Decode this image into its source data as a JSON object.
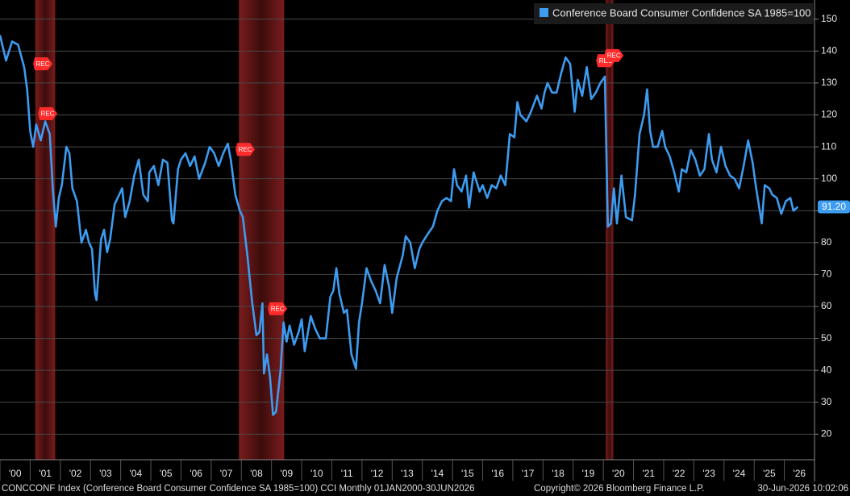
{
  "chart_data": {
    "type": "line",
    "legend_label": "Conference Board Consumer Confidence SA 1985=100",
    "footer_left": "CONCCONF Index (Conference Board Consumer Confidence SA 1985=100) CCI Monthly 01JAN2000-30JUN2026",
    "footer_copyright": "Copyright© 2026 Bloomberg Finance L.P.",
    "footer_timestamp": "30-Jun-2026 10:02:06",
    "last_value_label": "91.20",
    "x": [
      2000.0,
      2000.2,
      2000.4,
      2000.6,
      2000.8,
      2000.9,
      2001.0,
      2001.1,
      2001.2,
      2001.35,
      2001.5,
      2001.65,
      2001.75,
      2001.85,
      2001.95,
      2002.05,
      2002.2,
      2002.3,
      2002.4,
      2002.55,
      2002.7,
      2002.85,
      2002.95,
      2003.05,
      2003.15,
      2003.2,
      2003.35,
      2003.45,
      2003.55,
      2003.65,
      2003.8,
      2003.95,
      2004.05,
      2004.15,
      2004.3,
      2004.45,
      2004.6,
      2004.75,
      2004.9,
      2004.95,
      2005.1,
      2005.25,
      2005.4,
      2005.55,
      2005.7,
      2005.75,
      2005.9,
      2006.0,
      2006.15,
      2006.3,
      2006.45,
      2006.6,
      2006.8,
      2006.95,
      2007.1,
      2007.25,
      2007.4,
      2007.55,
      2007.65,
      2007.8,
      2007.95,
      2008.05,
      2008.2,
      2008.35,
      2008.5,
      2008.6,
      2008.7,
      2008.75,
      2008.85,
      2008.95,
      2009.05,
      2009.15,
      2009.3,
      2009.4,
      2009.5,
      2009.6,
      2009.75,
      2009.9,
      2010.0,
      2010.1,
      2010.3,
      2010.45,
      2010.6,
      2010.8,
      2010.95,
      2011.05,
      2011.15,
      2011.25,
      2011.4,
      2011.5,
      2011.65,
      2011.8,
      2011.9,
      2012.0,
      2012.15,
      2012.3,
      2012.45,
      2012.6,
      2012.75,
      2012.9,
      2013.0,
      2013.15,
      2013.35,
      2013.45,
      2013.6,
      2013.75,
      2013.9,
      2014.0,
      2014.2,
      2014.35,
      2014.5,
      2014.65,
      2014.8,
      2014.95,
      2015.05,
      2015.15,
      2015.3,
      2015.45,
      2015.55,
      2015.7,
      2015.9,
      2016.0,
      2016.15,
      2016.3,
      2016.45,
      2016.6,
      2016.75,
      2016.9,
      2017.05,
      2017.15,
      2017.25,
      2017.45,
      2017.6,
      2017.8,
      2017.95,
      2018.05,
      2018.15,
      2018.3,
      2018.45,
      2018.6,
      2018.75,
      2018.9,
      2019.05,
      2019.15,
      2019.3,
      2019.45,
      2019.6,
      2019.75,
      2019.9,
      2020.05,
      2020.15,
      2020.25,
      2020.35,
      2020.45,
      2020.6,
      2020.75,
      2020.95,
      2021.05,
      2021.2,
      2021.35,
      2021.45,
      2021.55,
      2021.65,
      2021.8,
      2021.95,
      2022.05,
      2022.2,
      2022.35,
      2022.5,
      2022.6,
      2022.75,
      2022.9,
      2023.05,
      2023.2,
      2023.35,
      2023.5,
      2023.6,
      2023.75,
      2023.9,
      2024.05,
      2024.2,
      2024.35,
      2024.5,
      2024.65,
      2024.8,
      2024.95,
      2025.05,
      2025.15,
      2025.25,
      2025.35,
      2025.5,
      2025.6,
      2025.75,
      2025.9,
      2026.05,
      2026.2,
      2026.3,
      2026.45
    ],
    "series": [
      {
        "name": "Conference Board Consumer Confidence SA 1985=100",
        "color": "#3d9bf0",
        "values": [
          145,
          137,
          143,
          142,
          135,
          128,
          115,
          110,
          117,
          112,
          118,
          114,
          97,
          85,
          94,
          98,
          110,
          108,
          97,
          93,
          80,
          84,
          80,
          78,
          64,
          62,
          81,
          84,
          77,
          81,
          92,
          95,
          97,
          88,
          93,
          101,
          106,
          95,
          93,
          102,
          104,
          98,
          106,
          105,
          87,
          86,
          103,
          106,
          108,
          104,
          107,
          100,
          105,
          110,
          108,
          104,
          108,
          111,
          106,
          95,
          90,
          88,
          76,
          62,
          51,
          52,
          61,
          39,
          45,
          38,
          26,
          27,
          40,
          55,
          49,
          54,
          48,
          52,
          56,
          46,
          57,
          53,
          50,
          50,
          63,
          65,
          72,
          64,
          58,
          59,
          45,
          40.5,
          55,
          61,
          72,
          68,
          65,
          61,
          73,
          66,
          58,
          69,
          76,
          82,
          80,
          72,
          78,
          80,
          83,
          85,
          90,
          93,
          94,
          93,
          103,
          98,
          96,
          101,
          91,
          102,
          96,
          98,
          94,
          98,
          97,
          101,
          98,
          114,
          113,
          124,
          120,
          118,
          121,
          126,
          122,
          127,
          130,
          127,
          127,
          133,
          138,
          136,
          121,
          131,
          126,
          135,
          125,
          127,
          130,
          132,
          85,
          86,
          97,
          86,
          101,
          88,
          87,
          95,
          114,
          120,
          128,
          115,
          110,
          110,
          115,
          110,
          107,
          102,
          96,
          103,
          102,
          109,
          106,
          101,
          103,
          114,
          106,
          102,
          110,
          104,
          101,
          100,
          97,
          104,
          112,
          105,
          98,
          92,
          86,
          98,
          97,
          95,
          94,
          89,
          93,
          94,
          90,
          91.2
        ]
      }
    ],
    "recessions": [
      [
        2001.17,
        2001.83
      ],
      [
        2007.92,
        2009.42
      ],
      [
        2020.08,
        2020.33
      ]
    ],
    "annotations": [
      {
        "text": "REC",
        "x": 2001.42,
        "y": 136
      },
      {
        "text": "REC",
        "x": 2001.58,
        "y": 120.4
      },
      {
        "text": "REC",
        "x": 2008.13,
        "y": 109.2
      },
      {
        "text": "REC",
        "x": 2009.2,
        "y": 59.3
      },
      {
        "text": "REC",
        "x": 2020.08,
        "y": 137
      },
      {
        "text": "REC",
        "x": 2020.35,
        "y": 138.6
      }
    ],
    "xlim": [
      2000,
      2027
    ],
    "ylim": [
      12,
      156
    ],
    "yticks": [
      20,
      30,
      40,
      50,
      60,
      70,
      80,
      90,
      100,
      110,
      120,
      130,
      140,
      150
    ],
    "xticks": [
      {
        "value": 2000,
        "label": "'00"
      },
      {
        "value": 2001,
        "label": "'01"
      },
      {
        "value": 2002,
        "label": "'02"
      },
      {
        "value": 2003,
        "label": "'03"
      },
      {
        "value": 2004,
        "label": "'04"
      },
      {
        "value": 2005,
        "label": "'05"
      },
      {
        "value": 2006,
        "label": "'06"
      },
      {
        "value": 2007,
        "label": "'07"
      },
      {
        "value": 2008,
        "label": "'08"
      },
      {
        "value": 2009,
        "label": "'09"
      },
      {
        "value": 2010,
        "label": "'10"
      },
      {
        "value": 2011,
        "label": "'11"
      },
      {
        "value": 2012,
        "label": "'12"
      },
      {
        "value": 2013,
        "label": "'13"
      },
      {
        "value": 2014,
        "label": "'14"
      },
      {
        "value": 2015,
        "label": "'15"
      },
      {
        "value": 2016,
        "label": "'16"
      },
      {
        "value": 2017,
        "label": "'17"
      },
      {
        "value": 2018,
        "label": "'18"
      },
      {
        "value": 2019,
        "label": "'19"
      },
      {
        "value": 2020,
        "label": "'20"
      },
      {
        "value": 2021,
        "label": "'21"
      },
      {
        "value": 2022,
        "label": "'22"
      },
      {
        "value": 2023,
        "label": "'23"
      },
      {
        "value": 2024,
        "label": "'24"
      },
      {
        "value": 2025,
        "label": "'25"
      },
      {
        "value": 2026,
        "label": "'26"
      }
    ],
    "grid": true
  }
}
